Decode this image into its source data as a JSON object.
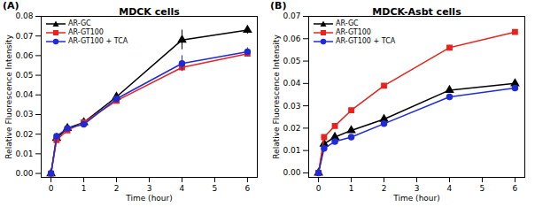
{
  "chart_data": [
    {
      "type": "line",
      "annotation": "(A)",
      "title": "MDCK cells",
      "x_label": "Time (hour)",
      "y_label": "Relative Fluorescence Intensity",
      "x": [
        0,
        0.17,
        0.5,
        1,
        2,
        4,
        6
      ],
      "xlim": [
        -0.3,
        6.3
      ],
      "xticks": [
        0,
        1,
        2,
        3,
        4,
        5,
        6
      ],
      "ylim": [
        -0.002,
        0.08
      ],
      "yticks": [
        {
          "value": 0,
          "label": "0.00"
        },
        {
          "value": 0.01,
          "label": "0.01"
        },
        {
          "value": 0.02,
          "label": "0.02"
        },
        {
          "value": 0.03,
          "label": "0.03"
        },
        {
          "value": 0.04,
          "label": "0.04"
        },
        {
          "value": 0.05,
          "label": "0.05"
        },
        {
          "value": 0.06,
          "label": "0.06"
        },
        {
          "value": 0.07,
          "label": "0.07"
        },
        {
          "value": 0.08,
          "label": "0.08"
        }
      ],
      "legend": "upper left",
      "series": [
        {
          "name": "AR-GC",
          "color": "#000000",
          "marker": "triangle",
          "values": [
            0,
            0.018,
            0.023,
            0.026,
            0.039,
            0.068,
            0.073
          ],
          "errors": [
            0,
            0.001,
            0.001,
            0.001,
            0.001,
            0.005,
            0.002
          ]
        },
        {
          "name": "AR-GT100",
          "color": "#e8231e",
          "marker": "square",
          "values": [
            0,
            0.017,
            0.022,
            0.026,
            0.037,
            0.054,
            0.061
          ],
          "errors": [
            0,
            0.001,
            0.001,
            0.001,
            0.001,
            0.002,
            0.001
          ]
        },
        {
          "name": "AR-GT100 + TCA",
          "color": "#1f2bd6",
          "marker": "circle",
          "values": [
            0,
            0.019,
            0.023,
            0.025,
            0.038,
            0.056,
            0.062
          ],
          "errors": [
            0,
            0.001,
            0.001,
            0.001,
            0.001,
            0.004,
            0.002
          ]
        }
      ]
    },
    {
      "type": "line",
      "annotation": "(B)",
      "title": "MDCK-Asbt cells",
      "x_label": "Time (hour)",
      "y_label": "Relative Fluorescence Intensity",
      "x": [
        0,
        0.17,
        0.5,
        1,
        2,
        4,
        6
      ],
      "xlim": [
        -0.3,
        6.3
      ],
      "xticks": [
        0,
        1,
        2,
        3,
        4,
        5,
        6
      ],
      "ylim": [
        -0.002,
        0.07
      ],
      "yticks": [
        {
          "value": 0,
          "label": "0.00"
        },
        {
          "value": 0.01,
          "label": "0.01"
        },
        {
          "value": 0.02,
          "label": "0.02"
        },
        {
          "value": 0.03,
          "label": "0.03"
        },
        {
          "value": 0.04,
          "label": "0.04"
        },
        {
          "value": 0.05,
          "label": "0.05"
        },
        {
          "value": 0.06,
          "label": "0.06"
        },
        {
          "value": 0.07,
          "label": "0.07"
        }
      ],
      "legend": "upper left",
      "series": [
        {
          "name": "AR-GC",
          "color": "#000000",
          "marker": "triangle",
          "values": [
            0,
            0.013,
            0.016,
            0.019,
            0.024,
            0.037,
            0.04
          ],
          "errors": [
            0,
            0.001,
            0.001,
            0.001,
            0.001,
            0.001,
            0.001
          ]
        },
        {
          "name": "AR-GT100",
          "color": "#e8231e",
          "marker": "square",
          "values": [
            0,
            0.016,
            0.021,
            0.028,
            0.039,
            0.056,
            0.063
          ],
          "errors": [
            0,
            0.001,
            0.001,
            0.001,
            0.001,
            0.001,
            0.001
          ]
        },
        {
          "name": "AR-GT100 + TCA",
          "color": "#1f2bd6",
          "marker": "circle",
          "values": [
            0,
            0.011,
            0.014,
            0.016,
            0.022,
            0.034,
            0.038
          ],
          "errors": [
            0,
            0.001,
            0.001,
            0.001,
            0.001,
            0.001,
            0.001
          ]
        }
      ]
    }
  ]
}
